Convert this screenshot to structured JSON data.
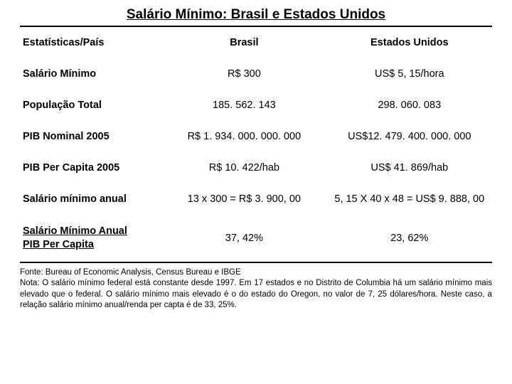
{
  "title": "Salário Mínimo: Brasil e Estados Unidos",
  "table": {
    "header": {
      "stat": "Estatísticas/País",
      "brasil": "Brasil",
      "eua": "Estados Unidos"
    },
    "rows": [
      {
        "label": "Salário Mínimo",
        "brasil": "R$ 300",
        "eua": "US$ 5, 15/hora",
        "underline": false
      },
      {
        "label": "População Total",
        "brasil": "185. 562. 143",
        "eua": "298. 060. 083",
        "underline": false
      },
      {
        "label": "PIB Nominal 2005",
        "brasil": "R$ 1. 934. 000. 000. 000",
        "eua": "US$12. 479. 400. 000. 000",
        "underline": false
      },
      {
        "label": "PIB Per Capita 2005",
        "brasil": "R$ 10. 422/hab",
        "eua": "US$ 41. 869/hab",
        "underline": false
      },
      {
        "label": "Salário mínimo anual",
        "brasil": "13 x 300 = R$ 3. 900, 00",
        "eua": "5, 15 X 40 x 48 = US$ 9. 888, 00",
        "underline": false
      },
      {
        "label": "Salário Mínimo Anual\n PIB Per Capita",
        "brasil": "37, 42%",
        "eua": "23, 62%",
        "underline": true
      }
    ]
  },
  "footer": {
    "fonte": "Fonte: Bureau of Economic Analysis, Census Bureau e IBGE",
    "nota": "Nota: O salário mínimo federal está constante desde 1997. Em 17 estados e no Distrito de Columbia há um salário mínimo mais elevado que o federal. O salário mínimo mais elevado é o do estado do Oregon, no valor de 7, 25 dólares/hora. Neste caso, a relação salário mínimo anual/renda per capta é de  33, 25%."
  },
  "colors": {
    "text": "#000000",
    "background": "#ffffff",
    "border": "#000000"
  },
  "typography": {
    "title_fontsize": 19,
    "body_fontsize": 14.5,
    "footer_fontsize": 11.5,
    "font_family": "Arial"
  }
}
